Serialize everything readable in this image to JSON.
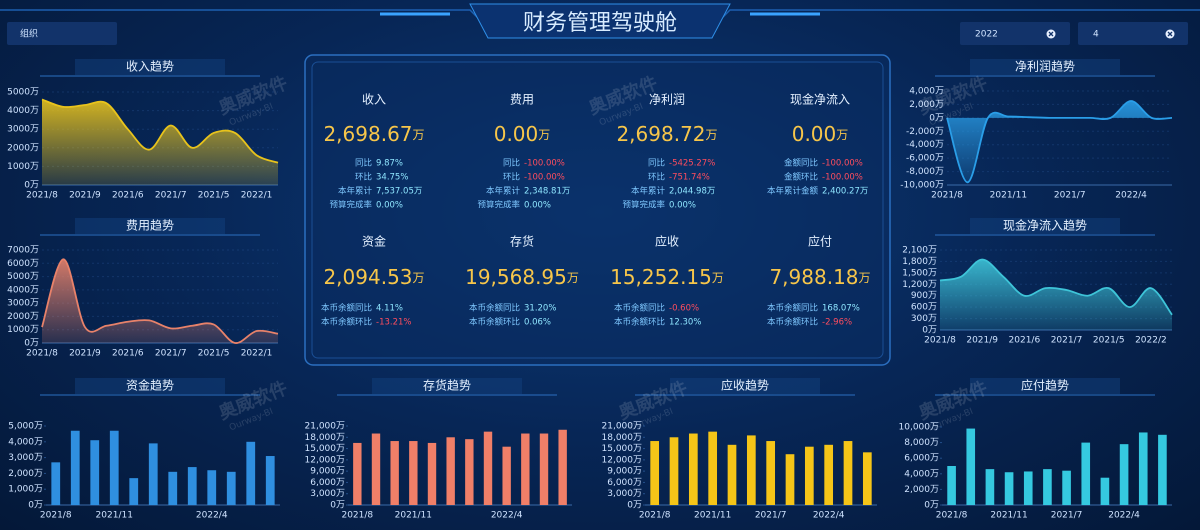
{
  "header": {
    "title": "财务管理驾驶舱"
  },
  "filters": {
    "org": "组织",
    "year": "2022",
    "month": "4"
  },
  "watermark": {
    "name": "奥威软件",
    "sub": "Ourway-BI"
  },
  "kpis": [
    {
      "name": "收入",
      "value": "2,698.67",
      "unit": "万",
      "details": [
        {
          "label": "同比",
          "value": "9.87%"
        },
        {
          "label": "环比",
          "value": "34.75%"
        },
        {
          "label": "本年累计",
          "value": "7,537.05万"
        },
        {
          "label": "预算完成率",
          "value": "0.00%"
        }
      ]
    },
    {
      "name": "费用",
      "value": "0.00",
      "unit": "万",
      "details": [
        {
          "label": "同比",
          "value": "-100.00%"
        },
        {
          "label": "环比",
          "value": "-100.00%"
        },
        {
          "label": "本年累计",
          "value": "2,348.81万"
        },
        {
          "label": "预算完成率",
          "value": "0.00%"
        }
      ]
    },
    {
      "name": "净利润",
      "value": "2,698.72",
      "unit": "万",
      "details": [
        {
          "label": "同比",
          "value": "-5425.27%"
        },
        {
          "label": "环比",
          "value": "-751.74%"
        },
        {
          "label": "本年累计",
          "value": "2,044.98万"
        },
        {
          "label": "预算完成率",
          "value": "0.00%"
        }
      ]
    },
    {
      "name": "现金净流入",
      "value": "0.00",
      "unit": "万",
      "details": [
        {
          "label": "金额同比",
          "value": "-100.00%"
        },
        {
          "label": "金额环比",
          "value": "-100.00%"
        },
        {
          "label": "本年累计金额",
          "value": "2,400.27万"
        }
      ]
    },
    {
      "name": "资金",
      "value": "2,094.53",
      "unit": "万",
      "details": [
        {
          "label": "本币余额同比",
          "value": "4.11%"
        },
        {
          "label": "本币余额环比",
          "value": "-13.21%"
        }
      ]
    },
    {
      "name": "存货",
      "value": "19,568.95",
      "unit": "万",
      "details": [
        {
          "label": "本币余额同比",
          "value": "31.20%"
        },
        {
          "label": "本币余额环比",
          "value": "0.06%"
        }
      ]
    },
    {
      "name": "应收",
      "value": "15,252.15",
      "unit": "万",
      "details": [
        {
          "label": "本币余额同比",
          "value": "-0.60%"
        },
        {
          "label": "本币余额环比",
          "value": "12.30%"
        }
      ]
    },
    {
      "name": "应付",
      "value": "7,988.18",
      "unit": "万",
      "details": [
        {
          "label": "本币余额同比",
          "value": "168.07%"
        },
        {
          "label": "本币余额环比",
          "value": "-2.96%"
        }
      ]
    }
  ],
  "chart_data": [
    {
      "type": "area",
      "title": "收入趋势",
      "color": "#e8c31c",
      "grid": true,
      "categories": [
        "2021/8",
        null,
        "2021/9",
        null,
        "2021/6",
        null,
        "2021/7",
        null,
        "2021/5",
        null,
        "2022/1",
        null
      ],
      "values": [
        4600,
        4200,
        4300,
        4400,
        3000,
        1900,
        3200,
        2000,
        2800,
        2800,
        1600,
        1200
      ],
      "ylim": [
        0,
        5000
      ],
      "yticks": [
        {
          "value": 0,
          "label": "0万"
        },
        {
          "value": 1000,
          "label": "1000万"
        },
        {
          "value": 2000,
          "label": "2000万"
        },
        {
          "value": 3000,
          "label": "3000万"
        },
        {
          "value": 4000,
          "label": "4000万"
        },
        {
          "value": 5000,
          "label": "5000万"
        }
      ]
    },
    {
      "type": "area",
      "title": "费用趋势",
      "color": "#e8826a",
      "grid": true,
      "categories": [
        "2021/8",
        null,
        "2021/9",
        null,
        "2021/6",
        null,
        "2021/7",
        null,
        "2021/5",
        null,
        "2022/1",
        null
      ],
      "values": [
        1200,
        6300,
        1200,
        1300,
        1600,
        1700,
        1100,
        1300,
        1400,
        0,
        900,
        700
      ],
      "ylim": [
        0,
        7000
      ],
      "yticks": [
        {
          "value": 0,
          "label": "0万"
        },
        {
          "value": 1000,
          "label": "1000万"
        },
        {
          "value": 2000,
          "label": "2000万"
        },
        {
          "value": 3000,
          "label": "3000万"
        },
        {
          "value": 4000,
          "label": "4000万"
        },
        {
          "value": 5000,
          "label": "5000万"
        },
        {
          "value": 6000,
          "label": "6000万"
        },
        {
          "value": 7000,
          "label": "7000万"
        }
      ]
    },
    {
      "type": "area",
      "title": "净利润趋势",
      "color": "#2a9ee8",
      "grid": true,
      "categories": [
        "2021/8",
        null,
        null,
        "2021/11",
        null,
        null,
        "2021/7",
        null,
        null,
        "2022/4",
        null,
        null
      ],
      "values": [
        0,
        -9600,
        0,
        200,
        100,
        0,
        0,
        0,
        0,
        2500,
        0,
        0
      ],
      "ylim": [
        -10000,
        4000
      ],
      "yticks": [
        {
          "value": -10000,
          "label": "-10,000万"
        },
        {
          "value": -8000,
          "label": "-8,000万"
        },
        {
          "value": -6000,
          "label": "-6,000万"
        },
        {
          "value": -4000,
          "label": "-4,000万"
        },
        {
          "value": -2000,
          "label": "-2,000万"
        },
        {
          "value": 0,
          "label": "0万"
        },
        {
          "value": 2000,
          "label": "2,000万"
        },
        {
          "value": 4000,
          "label": "4,000万"
        }
      ]
    },
    {
      "type": "area",
      "title": "现金净流入趋势",
      "color": "#3ec4d8",
      "grid": true,
      "categories": [
        "2021/8",
        null,
        "2021/9",
        null,
        "2021/6",
        null,
        "2021/7",
        null,
        "2021/5",
        null,
        "2022/2",
        null
      ],
      "values": [
        1300,
        1400,
        1850,
        1400,
        900,
        1100,
        1050,
        900,
        1100,
        600,
        1100,
        400
      ],
      "ylim": [
        0,
        2100
      ],
      "yticks": [
        {
          "value": 0,
          "label": "0万"
        },
        {
          "value": 300,
          "label": "300万"
        },
        {
          "value": 600,
          "label": "600万"
        },
        {
          "value": 900,
          "label": "900万"
        },
        {
          "value": 1200,
          "label": "1,200万"
        },
        {
          "value": 1500,
          "label": "1,500万"
        },
        {
          "value": 1800,
          "label": "1,800万"
        },
        {
          "value": 2100,
          "label": "2,100万"
        }
      ]
    },
    {
      "type": "bar",
      "title": "资金趋势",
      "color": "#2f8fe0",
      "grid": false,
      "categories": [
        "2021/8",
        null,
        null,
        "2021/11",
        null,
        null,
        null,
        null,
        "2022/4",
        null,
        null,
        null
      ],
      "values": [
        2700,
        4700,
        4100,
        4700,
        1700,
        3900,
        2100,
        2400,
        2200,
        2100,
        4000,
        3100
      ],
      "ylim": [
        0,
        5000
      ],
      "yticks": [
        {
          "value": 0,
          "label": "0万"
        },
        {
          "value": 1000,
          "label": "1,000万"
        },
        {
          "value": 2000,
          "label": "2,000万"
        },
        {
          "value": 3000,
          "label": "3,000万"
        },
        {
          "value": 4000,
          "label": "4,000万"
        },
        {
          "value": 5000,
          "label": "5,000万"
        }
      ]
    },
    {
      "type": "bar",
      "title": "存货趋势",
      "color": "#f07f68",
      "grid": false,
      "categories": [
        "2021/8",
        null,
        null,
        "2021/11",
        null,
        null,
        null,
        null,
        "2022/4",
        null,
        null,
        null
      ],
      "values": [
        16500,
        19000,
        17000,
        17000,
        16500,
        18000,
        17500,
        19500,
        15500,
        19000,
        19000,
        20000
      ],
      "ylim": [
        0,
        21000
      ],
      "yticks": [
        {
          "value": 0,
          "label": "0万"
        },
        {
          "value": 3000,
          "label": "3,000万"
        },
        {
          "value": 6000,
          "label": "6,000万"
        },
        {
          "value": 9000,
          "label": "9,000万"
        },
        {
          "value": 12000,
          "label": "12,000万"
        },
        {
          "value": 15000,
          "label": "15,000万"
        },
        {
          "value": 18000,
          "label": "18,000万"
        },
        {
          "value": 21000,
          "label": "21,000万"
        }
      ]
    },
    {
      "type": "bar",
      "title": "应收趋势",
      "color": "#f5c518",
      "grid": false,
      "categories": [
        "2021/8",
        null,
        null,
        "2021/11",
        null,
        null,
        "2021/7",
        null,
        null,
        "2022/4",
        null,
        null
      ],
      "values": [
        17000,
        18000,
        19000,
        19500,
        16000,
        18500,
        17000,
        13500,
        15500,
        16000,
        17000,
        14000
      ],
      "ylim": [
        0,
        21000
      ],
      "yticks": [
        {
          "value": 0,
          "label": "0万"
        },
        {
          "value": 3000,
          "label": "3,000万"
        },
        {
          "value": 6000,
          "label": "6,000万"
        },
        {
          "value": 9000,
          "label": "9,000万"
        },
        {
          "value": 12000,
          "label": "12,000万"
        },
        {
          "value": 15000,
          "label": "15,000万"
        },
        {
          "value": 18000,
          "label": "18,000万"
        },
        {
          "value": 21000,
          "label": "21,000万"
        }
      ]
    },
    {
      "type": "bar",
      "title": "应付趋势",
      "color": "#35c9e0",
      "grid": false,
      "categories": [
        "2021/8",
        null,
        null,
        "2021/11",
        null,
        null,
        "2021/7",
        null,
        null,
        "2022/4",
        null,
        null
      ],
      "values": [
        5000,
        9800,
        4600,
        4200,
        4300,
        4600,
        4400,
        8000,
        3500,
        7800,
        9300,
        9000
      ],
      "ylim": [
        0,
        10000
      ],
      "yticks": [
        {
          "value": 0,
          "label": "0万"
        },
        {
          "value": 2000,
          "label": "2,000万"
        },
        {
          "value": 4000,
          "label": "4,000万"
        },
        {
          "value": 6000,
          "label": "6,000万"
        },
        {
          "value": 8000,
          "label": "8,000万"
        },
        {
          "value": 10000,
          "label": "10,000万"
        }
      ]
    }
  ]
}
